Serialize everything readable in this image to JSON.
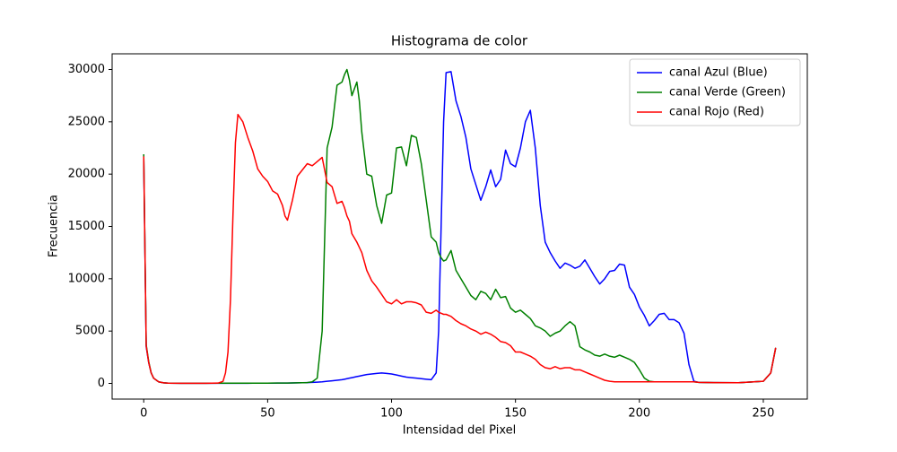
{
  "chart_data": {
    "type": "line",
    "title": "Histograma de color",
    "x_label": "Intensidad del Pixel",
    "y_label": "Frecuencia",
    "x": [
      0,
      1,
      2,
      3,
      4,
      6,
      8,
      10,
      15,
      20,
      25,
      30,
      32,
      33,
      34,
      35,
      36,
      37,
      38,
      40,
      42,
      44,
      46,
      48,
      50,
      52,
      54,
      56,
      57,
      58,
      60,
      62,
      64,
      66,
      68,
      70,
      72,
      74,
      76,
      78,
      80,
      81,
      82,
      83,
      84,
      86,
      87,
      88,
      90,
      92,
      94,
      96,
      98,
      100,
      102,
      104,
      106,
      108,
      110,
      112,
      114,
      116,
      118,
      119,
      120,
      121,
      122,
      124,
      126,
      128,
      130,
      132,
      134,
      136,
      138,
      140,
      142,
      144,
      146,
      148,
      150,
      152,
      154,
      156,
      158,
      160,
      162,
      164,
      166,
      168,
      170,
      172,
      174,
      176,
      178,
      180,
      182,
      184,
      186,
      188,
      190,
      192,
      194,
      196,
      198,
      200,
      202,
      204,
      206,
      208,
      210,
      212,
      214,
      216,
      218,
      220,
      222,
      224,
      230,
      240,
      250,
      253,
      255
    ],
    "series": [
      {
        "name": "canal Azul (Blue)",
        "color": "#0000ff",
        "values": [
          21500,
          3500,
          2000,
          1000,
          500,
          150,
          50,
          20,
          10,
          10,
          10,
          10,
          10,
          10,
          10,
          10,
          10,
          10,
          10,
          10,
          10,
          20,
          20,
          20,
          20,
          20,
          30,
          30,
          30,
          30,
          40,
          50,
          60,
          80,
          100,
          120,
          150,
          200,
          250,
          300,
          350,
          400,
          450,
          500,
          550,
          650,
          700,
          750,
          850,
          900,
          950,
          1000,
          950,
          900,
          800,
          700,
          600,
          550,
          500,
          450,
          400,
          350,
          1000,
          5000,
          15000,
          25000,
          29700,
          29800,
          27000,
          25500,
          23500,
          20500,
          19000,
          17500,
          18800,
          20400,
          18800,
          19500,
          22300,
          21000,
          20700,
          22500,
          25000,
          26100,
          22500,
          17000,
          13500,
          12500,
          11700,
          11000,
          11500,
          11300,
          11000,
          11200,
          11800,
          11000,
          10200,
          9500,
          10000,
          10700,
          10800,
          11400,
          11300,
          9200,
          8500,
          7300,
          6500,
          5500,
          6000,
          6600,
          6700,
          6100,
          6100,
          5800,
          4800,
          1800,
          200,
          100,
          80,
          60,
          200,
          1000,
          3400
        ]
      },
      {
        "name": "canal Verde (Green)",
        "color": "#008000",
        "values": [
          21900,
          3700,
          2100,
          1000,
          500,
          150,
          50,
          20,
          10,
          10,
          10,
          20,
          20,
          20,
          20,
          20,
          20,
          20,
          20,
          20,
          20,
          20,
          20,
          20,
          20,
          30,
          30,
          30,
          30,
          30,
          40,
          50,
          60,
          80,
          150,
          500,
          5000,
          22500,
          24500,
          28500,
          28800,
          29500,
          30000,
          29000,
          27500,
          28800,
          27000,
          24000,
          20000,
          19800,
          17000,
          15300,
          18000,
          18200,
          22500,
          22600,
          20800,
          23700,
          23500,
          21000,
          17500,
          14000,
          13500,
          12500,
          12000,
          11700,
          11800,
          12700,
          10800,
          10000,
          9200,
          8400,
          8000,
          8800,
          8600,
          8000,
          9000,
          8200,
          8300,
          7200,
          6800,
          7000,
          6600,
          6200,
          5500,
          5300,
          5000,
          4500,
          4800,
          5000,
          5500,
          5900,
          5500,
          3500,
          3200,
          3000,
          2700,
          2600,
          2800,
          2600,
          2500,
          2700,
          2500,
          2300,
          2000,
          1300,
          500,
          200,
          150,
          150,
          150,
          150,
          150,
          150,
          150,
          150,
          150,
          100,
          80,
          60,
          200,
          1000,
          3400
        ]
      },
      {
        "name": "canal Rojo (Red)",
        "color": "#ff0000",
        "values": [
          21700,
          3600,
          2000,
          1000,
          500,
          150,
          50,
          20,
          10,
          10,
          10,
          30,
          200,
          1000,
          3000,
          8000,
          16000,
          23000,
          25700,
          25000,
          23500,
          22200,
          20500,
          19800,
          19300,
          18400,
          18100,
          17000,
          16000,
          15600,
          17500,
          19800,
          20400,
          21000,
          20800,
          21200,
          21600,
          19200,
          18800,
          17200,
          17400,
          16800,
          16000,
          15500,
          14300,
          13500,
          13000,
          12500,
          10800,
          9800,
          9200,
          8500,
          7800,
          7600,
          8000,
          7600,
          7800,
          7800,
          7700,
          7500,
          6800,
          6700,
          7000,
          6800,
          6700,
          6600,
          6600,
          6400,
          6000,
          5700,
          5500,
          5200,
          5000,
          4700,
          4900,
          4700,
          4400,
          4000,
          3900,
          3600,
          3000,
          3000,
          2800,
          2600,
          2300,
          1800,
          1500,
          1400,
          1600,
          1400,
          1500,
          1500,
          1300,
          1300,
          1100,
          900,
          700,
          500,
          300,
          200,
          150,
          150,
          150,
          150,
          150,
          150,
          150,
          150,
          150,
          150,
          150,
          150,
          150,
          150,
          150,
          150,
          150,
          100,
          80,
          60,
          200,
          1000,
          3400
        ]
      }
    ],
    "xlim": [
      -12.75,
      267.75
    ],
    "ylim": [
      -1500,
      31500
    ],
    "xticks": [
      0,
      50,
      100,
      150,
      200,
      250
    ],
    "yticks": [
      0,
      5000,
      10000,
      15000,
      20000,
      25000,
      30000
    ],
    "legend": "upper right"
  }
}
